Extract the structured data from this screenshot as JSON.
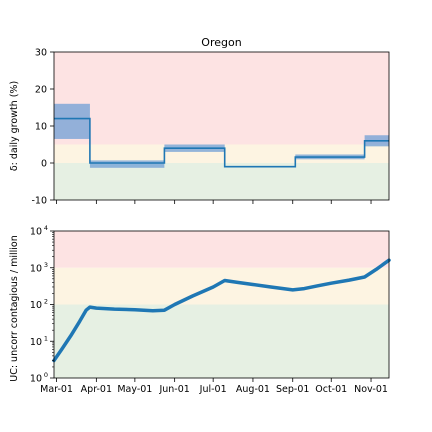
{
  "chart_data": [
    {
      "type": "line",
      "title": "Oregon",
      "ylabel": "δ: daily growth (%)",
      "xlabel": "",
      "ylim": [
        -10,
        30
      ],
      "yticks": [
        -10,
        0,
        10,
        20,
        30
      ],
      "xlim": [
        "2020-02-28",
        "2020-11-15"
      ],
      "xticks": [
        "2020-03-01",
        "2020-04-01",
        "2020-05-01",
        "2020-06-01",
        "2020-07-01",
        "2020-08-01",
        "2020-09-01",
        "2020-10-01",
        "2020-11-01"
      ],
      "show_xtick_labels": false,
      "grid": false,
      "legend": "none",
      "bands": [
        {
          "from": 5,
          "to": 30,
          "color": "#fde3e3"
        },
        {
          "from": 0,
          "to": 5,
          "color": "#fdf4e2"
        },
        {
          "from": -10,
          "to": 0,
          "color": "#e6f0e3"
        }
      ],
      "series": [
        {
          "step": true,
          "color": "#1f77b4",
          "segments": [
            {
              "start": "2020-02-28",
              "end": "2020-03-27",
              "value": 12,
              "low": 6.5,
              "high": 16
            },
            {
              "start": "2020-03-27",
              "end": "2020-05-24",
              "value": 0,
              "low": -1.3,
              "high": 0.7
            },
            {
              "start": "2020-05-24",
              "end": "2020-07-10",
              "value": 4,
              "low": 3,
              "high": 5
            },
            {
              "start": "2020-07-10",
              "end": "2020-09-03",
              "value": -1,
              "low": -1.2,
              "high": -0.8
            },
            {
              "start": "2020-09-03",
              "end": "2020-10-27",
              "value": 1.6,
              "low": 1,
              "high": 2.3
            },
            {
              "start": "2020-10-27",
              "end": "2020-11-15",
              "value": 6,
              "low": 4.5,
              "high": 7.5
            }
          ]
        }
      ]
    },
    {
      "type": "line",
      "title": "",
      "ylabel": "UC: uncorr contagious / million",
      "xlabel": "",
      "yscale": "log",
      "ylim": [
        1,
        10000
      ],
      "yticks": [
        1,
        10,
        100,
        1000,
        10000
      ],
      "ytick_labels": [
        [
          "10",
          "0"
        ],
        [
          "10",
          "1"
        ],
        [
          "10",
          "2"
        ],
        [
          "10",
          "3"
        ],
        [
          "10",
          "4"
        ]
      ],
      "xlim": [
        "2020-02-28",
        "2020-11-15"
      ],
      "xticks": [
        "2020-03-01",
        "2020-04-01",
        "2020-05-01",
        "2020-06-01",
        "2020-07-01",
        "2020-08-01",
        "2020-09-01",
        "2020-10-01",
        "2020-11-01"
      ],
      "xtick_labels": [
        "Mar-01",
        "Apr-01",
        "May-01",
        "Jun-01",
        "Jul-01",
        "Aug-01",
        "Sep-01",
        "Oct-01",
        "Nov-01"
      ],
      "grid": false,
      "legend": "none",
      "bands": [
        {
          "from": 1000,
          "to": 10000,
          "color": "#fde3e3"
        },
        {
          "from": 100,
          "to": 1000,
          "color": "#fdf4e2"
        },
        {
          "from": 1,
          "to": 100,
          "color": "#e6f0e3"
        }
      ],
      "series": [
        {
          "color": "#1f77b4",
          "x": [
            "2020-02-28",
            "2020-03-05",
            "2020-03-12",
            "2020-03-19",
            "2020-03-24",
            "2020-03-27",
            "2020-04-01",
            "2020-04-15",
            "2020-05-01",
            "2020-05-15",
            "2020-05-24",
            "2020-06-01",
            "2020-06-15",
            "2020-07-01",
            "2020-07-10",
            "2020-07-20",
            "2020-08-01",
            "2020-08-15",
            "2020-09-01",
            "2020-09-10",
            "2020-09-20",
            "2020-10-01",
            "2020-10-15",
            "2020-10-27",
            "2020-11-05",
            "2020-11-15"
          ],
          "values": [
            3,
            6,
            14,
            35,
            70,
            85,
            80,
            75,
            72,
            68,
            70,
            100,
            170,
            300,
            450,
            400,
            350,
            300,
            250,
            270,
            320,
            380,
            460,
            560,
            900,
            1600
          ]
        }
      ]
    }
  ]
}
